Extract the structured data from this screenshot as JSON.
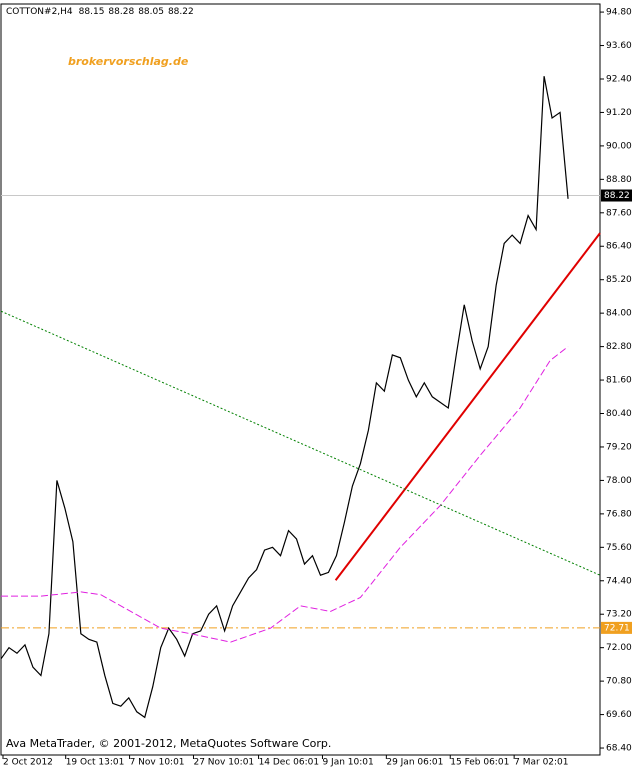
{
  "chart_data": {
    "type": "line",
    "symbol": "COTTON#2,H4",
    "ohlc": [
      88.15,
      88.28,
      88.05,
      88.22
    ],
    "watermark": "brokervorschlag.de",
    "footer": "Ava MetaTrader, © 2001-2012, MetaQuotes Software Corp.",
    "xlim": [
      0,
      75
    ],
    "xticks": [
      {
        "value": 0.25,
        "label": "2 Oct 2012"
      },
      {
        "value": 8.1,
        "label": "19 Oct 13:01"
      },
      {
        "value": 16.1,
        "label": "7 Nov 10:01"
      },
      {
        "value": 24.1,
        "label": "27 Nov 10:01"
      },
      {
        "value": 32.25,
        "label": "14 Dec 06:01"
      },
      {
        "value": 40.25,
        "label": "9 Jan 10:01"
      },
      {
        "value": 48.25,
        "label": "29 Jan 06:01"
      },
      {
        "value": 56.25,
        "label": "15 Feb 06:01"
      },
      {
        "value": 64.25,
        "label": "7 Mar 02:01"
      }
    ],
    "ylim": [
      68.15,
      95.09
    ],
    "yticks": [
      {
        "value": 94.8,
        "label": "94.80"
      },
      {
        "value": 93.6,
        "label": "93.60"
      },
      {
        "value": 92.4,
        "label": "92.40"
      },
      {
        "value": 91.2,
        "label": "91.20"
      },
      {
        "value": 90,
        "label": "90.00"
      },
      {
        "value": 88.8,
        "label": "88.80"
      },
      {
        "value": 87.6,
        "label": "87.60"
      },
      {
        "value": 86.4,
        "label": "86.40"
      },
      {
        "value": 85.2,
        "label": "85.20"
      },
      {
        "value": 84,
        "label": "84.00"
      },
      {
        "value": 82.8,
        "label": "82.80"
      },
      {
        "value": 81.6,
        "label": "81.60"
      },
      {
        "value": 80.4,
        "label": "80.40"
      },
      {
        "value": 79.2,
        "label": "79.20"
      },
      {
        "value": 78,
        "label": "78.00"
      },
      {
        "value": 76.8,
        "label": "76.80"
      },
      {
        "value": 75.6,
        "label": "75.60"
      },
      {
        "value": 74.4,
        "label": "74.40"
      },
      {
        "value": 73.2,
        "label": "73.20"
      },
      {
        "value": 72,
        "label": "72.00"
      },
      {
        "value": 70.8,
        "label": "70.80"
      },
      {
        "value": 69.6,
        "label": "69.60"
      },
      {
        "value": 68.4,
        "label": "68.40"
      }
    ],
    "series": [
      {
        "color": "#000000",
        "style": "solid",
        "width": 1.2,
        "x": [
          0,
          1,
          2,
          3,
          4,
          5,
          6,
          7,
          8,
          9,
          10,
          11,
          12,
          13,
          14,
          15,
          16,
          17,
          18,
          19,
          20,
          21,
          22,
          23,
          24,
          25,
          26,
          27,
          28,
          29,
          30,
          31,
          32,
          33,
          34,
          35,
          36,
          37,
          38,
          39,
          40,
          41,
          42,
          43,
          44,
          45,
          46,
          47,
          48,
          49,
          50,
          51,
          52,
          53,
          54,
          55,
          56,
          57,
          58,
          59,
          60,
          61,
          62,
          63,
          64,
          65,
          66,
          67,
          68,
          69,
          70,
          71
        ],
        "values": [
          71.6,
          72.0,
          71.8,
          72.1,
          71.3,
          71.0,
          72.5,
          78.0,
          77.0,
          75.8,
          72.5,
          72.3,
          72.2,
          71.0,
          70.0,
          69.9,
          70.2,
          69.7,
          69.5,
          70.6,
          72.0,
          72.7,
          72.3,
          71.7,
          72.5,
          72.6,
          73.2,
          73.5,
          72.6,
          73.5,
          74.0,
          74.5,
          74.8,
          75.5,
          75.6,
          75.3,
          76.2,
          75.9,
          75.0,
          75.3,
          74.6,
          74.7,
          75.3,
          76.5,
          77.8,
          78.6,
          79.8,
          81.5,
          81.2,
          82.5,
          82.4,
          81.6,
          81.0,
          81.5,
          81.0,
          80.8,
          80.6,
          82.5,
          84.3,
          83.0,
          82.0,
          82.8,
          85.0,
          86.5,
          86.8,
          86.5,
          87.5,
          87.0,
          92.5,
          91.0,
          91.2,
          88.1
        ]
      },
      {
        "color": "#e020e0",
        "style": "dashed",
        "width": 1,
        "x": [
          0,
          5,
          10,
          12.5,
          16.25,
          20,
          23.75,
          28.75,
          33.75,
          37.5,
          41.25,
          45,
          50,
          55,
          60,
          65,
          68.75,
          71
        ],
        "values": [
          73.85,
          73.85,
          74.0,
          73.9,
          73.3,
          72.7,
          72.5,
          72.2,
          72.7,
          73.5,
          73.3,
          73.8,
          75.6,
          77.1,
          78.9,
          80.6,
          82.3,
          82.8
        ]
      },
      {
        "color": "#e00000",
        "style": "solid",
        "width": 2,
        "x": [
          41.9,
          75
        ],
        "values": [
          74.42,
          86.87
        ]
      },
      {
        "color": "#008000",
        "style": "dotted",
        "width": 1,
        "x": [
          0,
          75
        ],
        "values": [
          84.07,
          74.6
        ]
      }
    ],
    "levels": [
      {
        "value": 88.22,
        "color": "#c8c8c8",
        "style": "solid",
        "box": "#000000"
      },
      {
        "value": 72.71,
        "color": "#f0a020",
        "style": "dashdot",
        "box": "#f0a020"
      }
    ]
  }
}
